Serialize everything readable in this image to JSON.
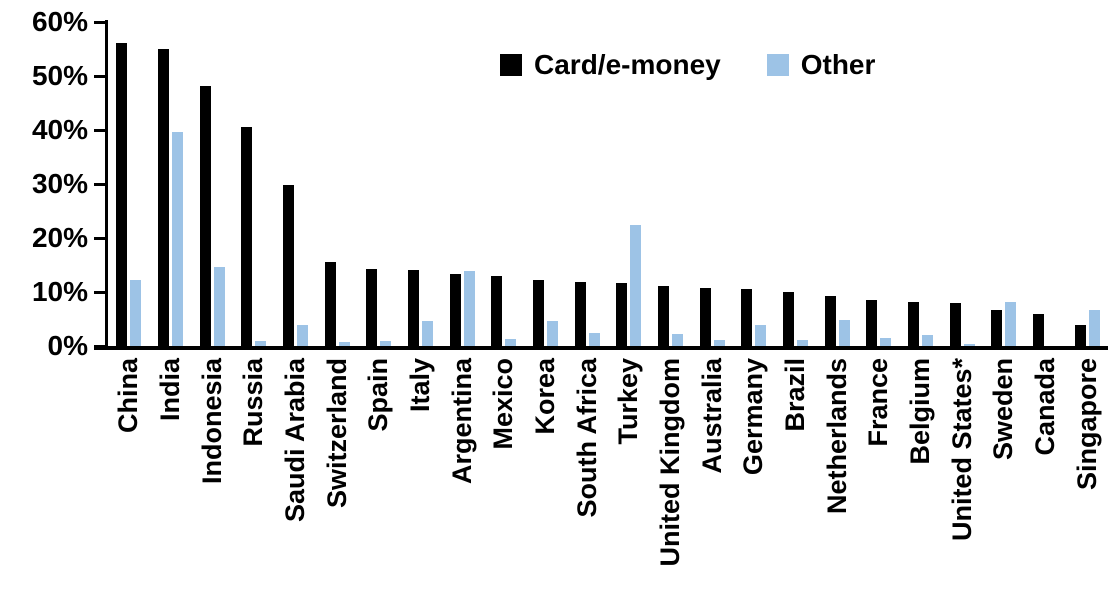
{
  "chart_data": {
    "type": "bar",
    "title": "",
    "xlabel": "",
    "ylabel": "",
    "ylim": [
      0,
      60
    ],
    "grid": false,
    "legend_position": "top-center",
    "y_tick_labels": [
      "60%",
      "50%",
      "40%",
      "30%",
      "20%",
      "10%",
      "0%"
    ],
    "y_tick_values": [
      60,
      50,
      40,
      30,
      20,
      10,
      0
    ],
    "categories": [
      "China",
      "India",
      "Indonesia",
      "Russia",
      "Saudi Arabia",
      "Switzerland",
      "Spain",
      "Italy",
      "Argentina",
      "Mexico",
      "Korea",
      "South Africa",
      "Turkey",
      "United Kingdom",
      "Australia",
      "Germany",
      "Brazil",
      "Netherlands",
      "France",
      "Belgium",
      "United States*",
      "Sweden",
      "Canada",
      "Singapore"
    ],
    "series": [
      {
        "name": "Card/e-money",
        "color": "#000000",
        "values": [
          56.2,
          55.0,
          48.2,
          40.5,
          29.9,
          15.6,
          14.2,
          14.1,
          13.3,
          12.9,
          12.2,
          11.8,
          11.7,
          11.1,
          10.8,
          10.6,
          10.0,
          9.3,
          8.6,
          8.2,
          7.9,
          6.6,
          5.9,
          3.8
        ]
      },
      {
        "name": "Other",
        "color": "#9DC3E6",
        "values": [
          12.3,
          39.6,
          14.6,
          1.0,
          3.9,
          0.8,
          1.0,
          4.6,
          13.8,
          1.3,
          4.6,
          2.4,
          22.5,
          2.3,
          1.1,
          3.9,
          1.2,
          4.8,
          1.5,
          2.0,
          0.3,
          8.2,
          0.0,
          6.6
        ]
      }
    ]
  },
  "legend": {
    "card_label": "Card/e-money",
    "other_label": "Other"
  }
}
